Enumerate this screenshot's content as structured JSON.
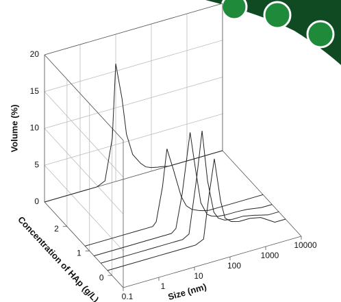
{
  "chart_data": {
    "type": "waterfall3d",
    "y_label": "Volume (%)",
    "x_label": "Size (nm)",
    "z_label": "Concentration of HAp (g/L)",
    "x": [
      0.1,
      1,
      3,
      5,
      8,
      10,
      15,
      20,
      30,
      50,
      70,
      100,
      150,
      200,
      300,
      500,
      1000,
      2000,
      5000,
      10000
    ],
    "series": [
      {
        "z": 3,
        "values": [
          0,
          0,
          0,
          0.5,
          6,
          16,
          11,
          6,
          3,
          1.5,
          0.8,
          0.5,
          0.3,
          0.2,
          0,
          0,
          0,
          0,
          0,
          0
        ]
      },
      {
        "z": 1.2,
        "values": [
          0,
          0,
          0,
          0,
          0,
          0.5,
          5,
          10,
          7,
          3,
          1.5,
          0.8,
          0.4,
          0.2,
          0,
          0,
          0,
          0,
          0,
          0
        ]
      },
      {
        "z": 0.8,
        "values": [
          0,
          0,
          0,
          0,
          0,
          0,
          0,
          0.5,
          5,
          13,
          8,
          3,
          1.2,
          0.8,
          0.5,
          0.4,
          0.4,
          0.3,
          0,
          0
        ]
      },
      {
        "z": 0.5,
        "values": [
          0,
          0,
          0,
          0,
          0,
          0,
          0,
          0,
          0.5,
          8,
          14,
          7,
          2.5,
          1.5,
          1,
          0.8,
          0.8,
          0.5,
          0,
          0
        ]
      },
      {
        "z": 0.2,
        "values": [
          0,
          0,
          0,
          0,
          0,
          0,
          0,
          0,
          0,
          0.5,
          6,
          11,
          5,
          2.5,
          1.8,
          1.5,
          1.5,
          1.2,
          0,
          0
        ]
      }
    ],
    "color": "#222222",
    "xlim": [
      0.1,
      10000
    ],
    "xticks": [
      0.1,
      1,
      10,
      100,
      1000,
      10000
    ],
    "log_x": true,
    "ylim": [
      0,
      20
    ],
    "yticks": [
      0,
      5,
      10,
      15,
      20
    ],
    "zlim": [
      -0.5,
      3
    ],
    "zticks": [
      0,
      1,
      2
    ],
    "grid": true
  }
}
